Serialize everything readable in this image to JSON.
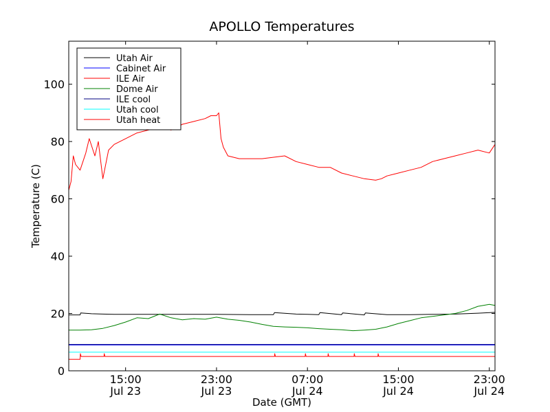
{
  "chart_data": {
    "type": "line",
    "title": "APOLLO Temperatures",
    "xlabel": "Date (GMT)",
    "ylabel": "Temperature (C)",
    "x_unit": "hours since Jul 23 10:00 GMT",
    "xlim": [
      0,
      37.5
    ],
    "ylim": [
      0,
      115
    ],
    "yticks": [
      0,
      20,
      40,
      60,
      80,
      100
    ],
    "xticks": [
      {
        "x": 5,
        "time": "15:00",
        "date": "Jul 23"
      },
      {
        "x": 13,
        "time": "23:00",
        "date": "Jul 23"
      },
      {
        "x": 21,
        "time": "07:00",
        "date": "Jul 24"
      },
      {
        "x": 29,
        "time": "15:00",
        "date": "Jul 24"
      },
      {
        "x": 37,
        "time": "23:00",
        "date": "Jul 24"
      }
    ],
    "legend_position": "top-left",
    "series": [
      {
        "name": "Utah Air",
        "color": "#000000",
        "x": [
          0,
          1,
          1.05,
          2,
          3,
          4,
          5,
          8,
          10,
          13,
          16,
          18,
          18.1,
          20,
          21,
          22,
          22.1,
          24,
          24.1,
          26,
          26.1,
          28,
          30,
          32,
          34,
          36,
          37.5
        ],
        "y": [
          19.5,
          19.5,
          20.2,
          19.9,
          19.8,
          19.7,
          19.7,
          19.7,
          19.7,
          19.7,
          19.6,
          19.6,
          20.3,
          19.8,
          19.7,
          19.6,
          20.3,
          19.6,
          20.2,
          19.5,
          20.2,
          19.6,
          19.6,
          19.7,
          19.8,
          20.1,
          20.4
        ]
      },
      {
        "name": "Cabinet Air",
        "color": "#0000ff",
        "x": [
          0,
          37.5
        ],
        "y": [
          9.0,
          9.0
        ]
      },
      {
        "name": "ILE Air",
        "color": "#ff0000",
        "x": [
          0,
          0.2,
          0.4,
          0.6,
          1,
          1.5,
          1.8,
          2.3,
          2.6,
          3,
          3.5,
          4,
          5,
          6,
          7,
          8,
          9,
          10,
          11,
          12,
          12.5,
          13,
          13.2,
          13.4,
          13.6,
          14,
          15,
          17,
          19,
          20,
          21,
          22,
          23,
          24,
          25,
          26,
          27,
          27.5,
          28,
          29,
          30,
          31,
          32,
          33,
          34,
          35,
          36,
          37,
          37.5
        ],
        "y": [
          63,
          66,
          75,
          72,
          70,
          76,
          81,
          75,
          80,
          67,
          77,
          79,
          81,
          83,
          84,
          85,
          84,
          86,
          87,
          88,
          89,
          89,
          90,
          81,
          78,
          75,
          74,
          74,
          75,
          73,
          72,
          71,
          71,
          69,
          68,
          67,
          66.5,
          67,
          68,
          69,
          70,
          71,
          73,
          74,
          75,
          76,
          77,
          76,
          79
        ]
      },
      {
        "name": "Dome Air",
        "color": "#008000",
        "x": [
          0,
          1,
          2,
          3,
          4,
          5,
          6,
          7,
          8,
          9,
          10,
          11,
          12,
          13,
          14,
          15,
          16,
          17,
          18,
          19,
          20,
          21,
          22,
          23,
          24,
          25,
          26,
          27,
          28,
          29,
          30,
          31,
          32,
          33,
          34,
          35,
          36,
          37,
          37.5
        ],
        "y": [
          14.2,
          14.2,
          14.3,
          14.8,
          15.8,
          17.0,
          18.5,
          18.2,
          19.8,
          18.5,
          17.8,
          18.2,
          18.0,
          18.7,
          18.0,
          17.6,
          17.0,
          16.2,
          15.5,
          15.3,
          15.2,
          15.0,
          14.7,
          14.5,
          14.3,
          14.0,
          14.2,
          14.5,
          15.3,
          16.5,
          17.5,
          18.5,
          19.0,
          19.5,
          20.0,
          21.0,
          22.5,
          23.2,
          22.8
        ]
      },
      {
        "name": "ILE cool",
        "color": "#000080",
        "x": [
          0,
          37.5
        ],
        "y": [
          9.2,
          9.2
        ]
      },
      {
        "name": "Utah cool",
        "color": "#00ffff",
        "x": [
          0,
          37.5
        ],
        "y": [
          6.5,
          6.5
        ]
      },
      {
        "name": "Utah heat",
        "color": "#ff0000",
        "x": [
          0,
          1,
          1.02,
          1.08,
          1.1,
          3.1,
          3.12,
          3.18,
          3.2,
          18.1,
          18.12,
          18.18,
          18.2,
          20.8,
          20.82,
          20.88,
          20.9,
          22.8,
          22.82,
          22.88,
          22.9,
          25.1,
          25.12,
          25.18,
          25.2,
          27.2,
          27.22,
          27.28,
          27.3,
          37.5
        ],
        "y": [
          4,
          4,
          6,
          5,
          5,
          5,
          6,
          5,
          5,
          5,
          6,
          5,
          5,
          5,
          6,
          5,
          5,
          5,
          6,
          5,
          5,
          5,
          6,
          5,
          5,
          5,
          6,
          5,
          5,
          5
        ]
      }
    ]
  }
}
